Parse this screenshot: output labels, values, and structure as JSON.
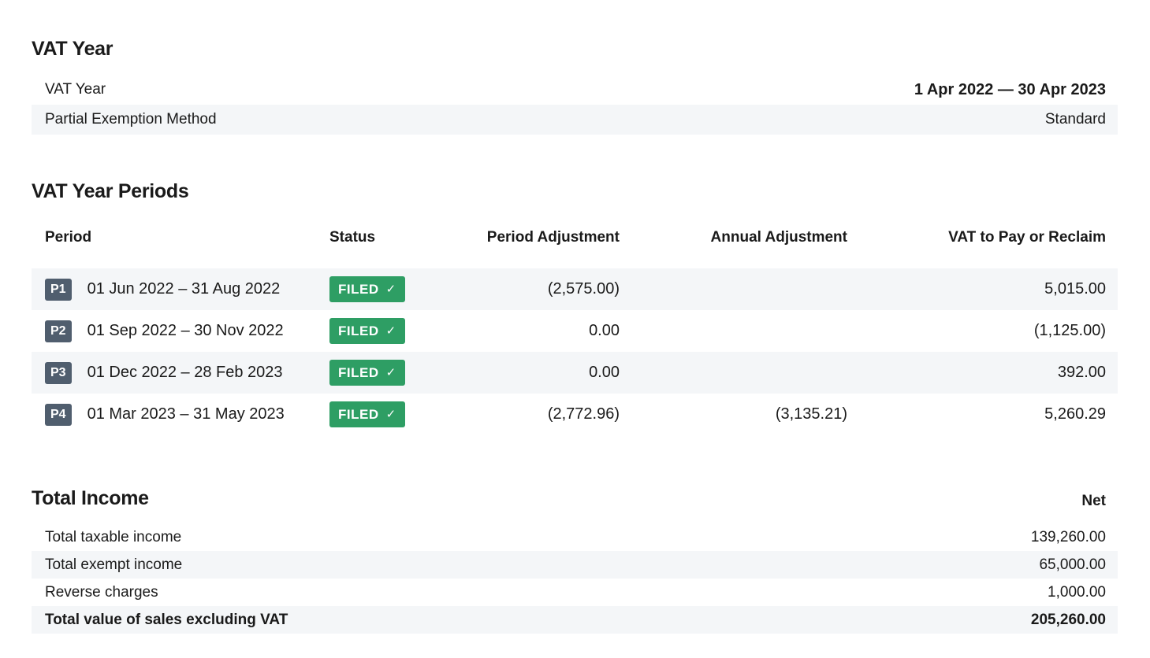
{
  "colors": {
    "text": "#1a1a1a",
    "stripe": "#f4f6f8",
    "badge_period_bg": "#505e6e",
    "badge_filed_bg": "#2e9e64"
  },
  "vat_year": {
    "title": "VAT Year",
    "rows": [
      {
        "label": "VAT Year",
        "value": "1 Apr 2022 — 30 Apr 2023"
      },
      {
        "label": "Partial Exemption Method",
        "value": "Standard"
      }
    ]
  },
  "periods": {
    "title": "VAT Year Periods",
    "columns": {
      "period": "Period",
      "status": "Status",
      "period_adjustment": "Period Adjustment",
      "annual_adjustment": "Annual Adjustment",
      "vat_to_pay": "VAT to Pay or Reclaim"
    },
    "rows": [
      {
        "badge": "P1",
        "dates": "01 Jun 2022 – 31 Aug 2022",
        "status": "FILED",
        "status_check": "✓",
        "period_adjustment": "(2,575.00)",
        "annual_adjustment": "",
        "vat_to_pay": "5,015.00"
      },
      {
        "badge": "P2",
        "dates": "01 Sep 2022 – 30 Nov 2022",
        "status": "FILED",
        "status_check": "✓",
        "period_adjustment": "0.00",
        "annual_adjustment": "",
        "vat_to_pay": "(1,125.00)"
      },
      {
        "badge": "P3",
        "dates": "01 Dec 2022 – 28 Feb 2023",
        "status": "FILED",
        "status_check": "✓",
        "period_adjustment": "0.00",
        "annual_adjustment": "",
        "vat_to_pay": "392.00"
      },
      {
        "badge": "P4",
        "dates": "01 Mar 2023 – 31 May 2023",
        "status": "FILED",
        "status_check": "✓",
        "period_adjustment": "(2,772.96)",
        "annual_adjustment": "(3,135.21)",
        "vat_to_pay": "5,260.29"
      }
    ]
  },
  "total_income": {
    "title": "Total Income",
    "net_label": "Net",
    "rows": [
      {
        "label": "Total taxable income",
        "value": "139,260.00"
      },
      {
        "label": "Total exempt income",
        "value": "65,000.00"
      },
      {
        "label": "Reverse charges",
        "value": "1,000.00"
      },
      {
        "label": "Total value of sales excluding VAT",
        "value": "205,260.00"
      }
    ]
  }
}
